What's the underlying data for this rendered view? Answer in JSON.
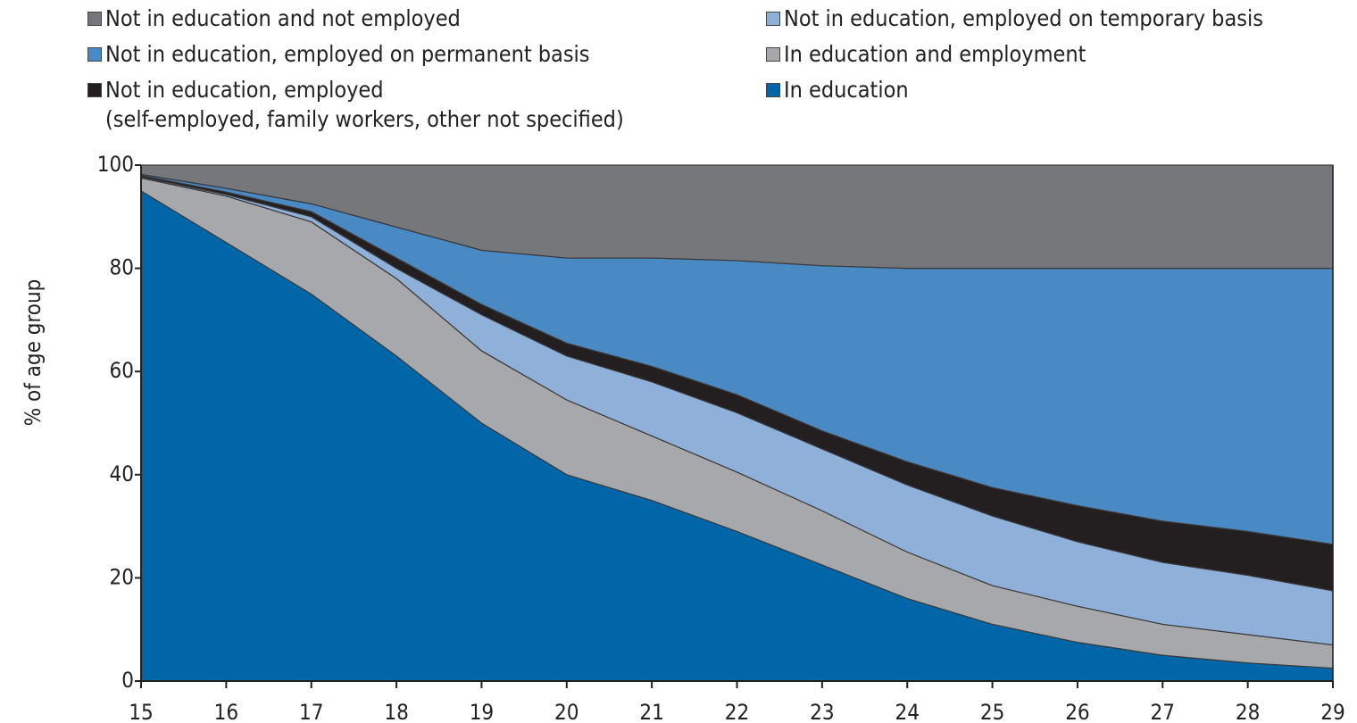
{
  "chart_data": {
    "type": "stacked-area",
    "y_label": "% of age group",
    "x": [
      15,
      16,
      17,
      18,
      19,
      20,
      21,
      22,
      23,
      24,
      25,
      26,
      27,
      28,
      29
    ],
    "xlim": [
      15,
      29
    ],
    "xticks": [
      15,
      16,
      17,
      18,
      19,
      20,
      21,
      22,
      23,
      24,
      25,
      26,
      27,
      28,
      29
    ],
    "ylim": [
      0,
      100
    ],
    "yticks": [
      0,
      20,
      40,
      60,
      80,
      100
    ],
    "series": [
      {
        "name": "In education",
        "color": "#0066a8",
        "values": [
          95,
          85,
          75,
          63,
          50,
          40,
          35,
          29,
          22.5,
          16,
          11,
          7.5,
          5,
          3.5,
          2.5
        ]
      },
      {
        "name": "In education and employment",
        "color": "#a6a8ab",
        "values": [
          2.5,
          9,
          14,
          15,
          14,
          14.5,
          12.5,
          11.5,
          10.5,
          9,
          7.5,
          7,
          6,
          5.5,
          4.5
        ]
      },
      {
        "name": "Not in education, employed on temporary basis",
        "color": "#8fb0d8",
        "values": [
          0.2,
          0.3,
          1,
          2,
          7,
          8.5,
          10.5,
          11.5,
          12,
          13,
          13.5,
          12.5,
          12,
          11.5,
          10.5
        ]
      },
      {
        "name": "Not in education, employed\n(self-employed, family workers, other not specified)",
        "color": "#231f20",
        "values": [
          0.3,
          0.5,
          1,
          2,
          2,
          2.5,
          3,
          3.5,
          3.5,
          4.5,
          5.5,
          7,
          8,
          8.5,
          9
        ]
      },
      {
        "name": "Not in education, employed on permanent basis",
        "color": "#4a8ac4",
        "values": [
          0.2,
          0.7,
          1.5,
          6,
          10.5,
          16.5,
          21,
          26,
          32,
          37.5,
          42.5,
          46,
          49,
          51,
          53.5
        ]
      },
      {
        "name": "Not in education and not employed",
        "color": "#76777a",
        "values": [
          1.8,
          4.5,
          7.5,
          12,
          16.5,
          18,
          18,
          18.5,
          19.5,
          20,
          20,
          20,
          20,
          20,
          20
        ]
      }
    ]
  }
}
